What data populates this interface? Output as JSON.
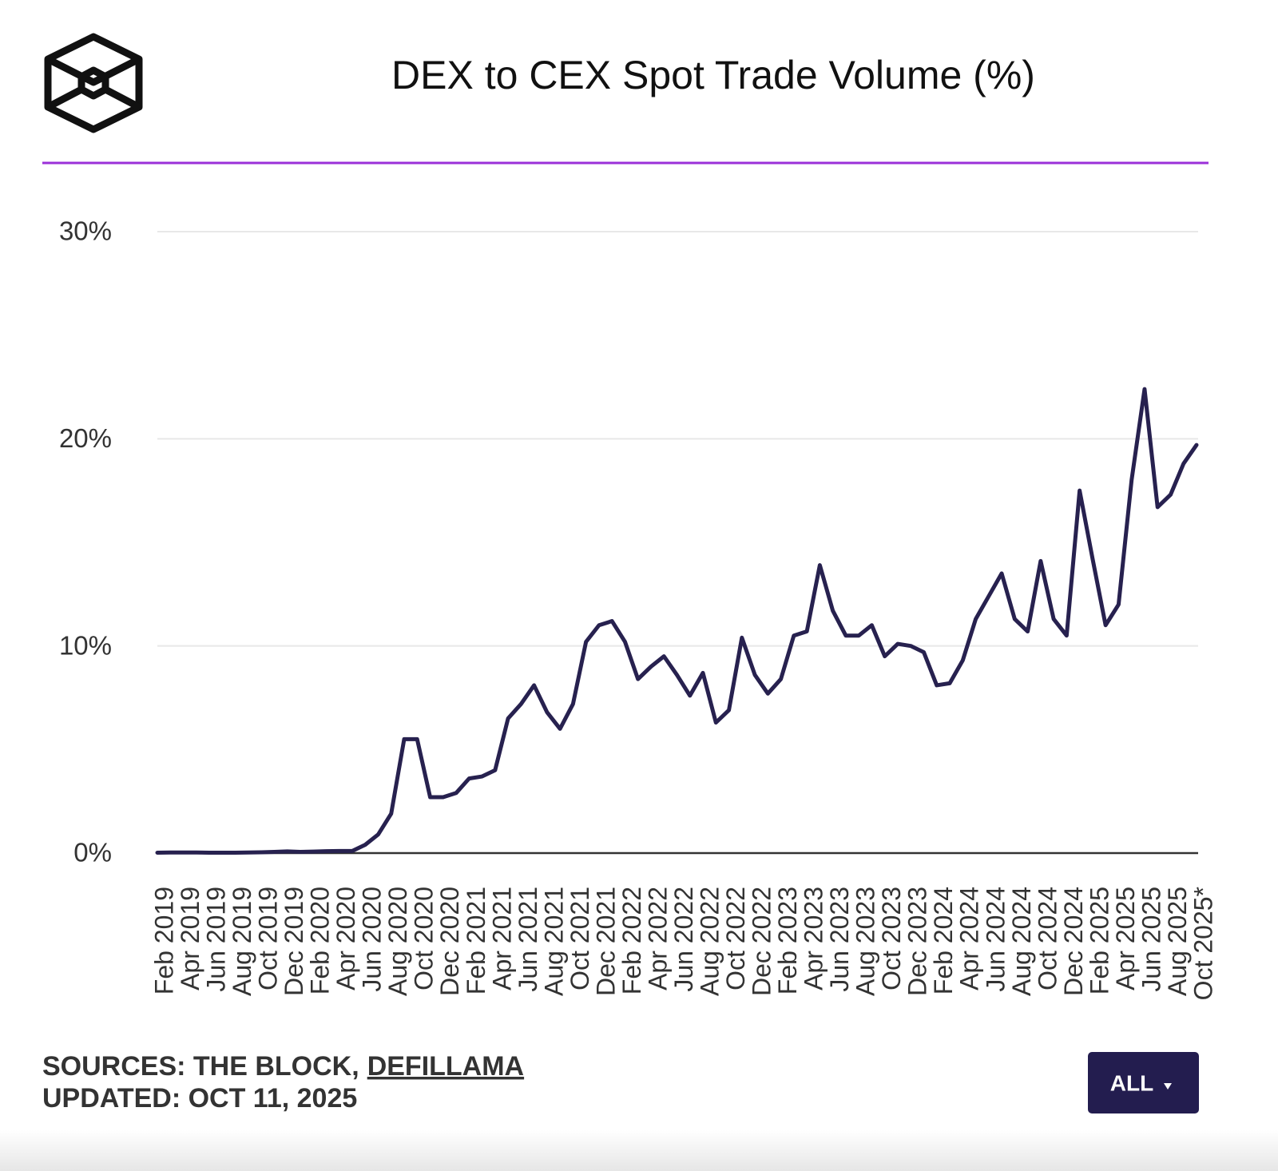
{
  "chart_data": {
    "type": "line",
    "title": "DEX to CEX Spot Trade Volume (%)",
    "categories": [
      "Feb 2019",
      null,
      "Apr 2019",
      null,
      "Jun 2019",
      null,
      "Aug 2019",
      null,
      "Oct 2019",
      null,
      "Dec 2019",
      null,
      "Feb 2020",
      null,
      "Apr 2020",
      null,
      "Jun 2020",
      null,
      "Aug 2020",
      null,
      "Oct 2020",
      null,
      "Dec 2020",
      null,
      "Feb 2021",
      null,
      "Apr 2021",
      null,
      "Jun 2021",
      null,
      "Aug 2021",
      null,
      "Oct 2021",
      null,
      "Dec 2021",
      null,
      "Feb 2022",
      null,
      "Apr 2022",
      null,
      "Jun 2022",
      null,
      "Aug 2022",
      null,
      "Oct 2022",
      null,
      "Dec 2022",
      null,
      "Feb 2023",
      null,
      "Apr 2023",
      null,
      "Jun 2023",
      null,
      "Aug 2023",
      null,
      "Oct 2023",
      null,
      "Dec 2023",
      null,
      "Feb 2024",
      null,
      "Apr 2024",
      null,
      "Jun 2024",
      null,
      "Aug 2024",
      null,
      "Oct 2024",
      null,
      "Dec 2024",
      null,
      "Feb 2025",
      null,
      "Apr 2025",
      null,
      "Jun 2025",
      null,
      "Aug 2025",
      null,
      "Oct 2025*"
    ],
    "values": [
      0.02,
      0.03,
      0.03,
      0.03,
      0.02,
      0.02,
      0.02,
      0.03,
      0.04,
      0.06,
      0.08,
      0.06,
      0.07,
      0.09,
      0.1,
      0.1,
      0.4,
      0.9,
      1.9,
      5.5,
      5.5,
      2.7,
      2.7,
      2.9,
      3.6,
      3.7,
      4.0,
      6.5,
      7.2,
      8.1,
      6.8,
      6.0,
      7.2,
      10.2,
      11.0,
      11.2,
      10.2,
      8.4,
      9.0,
      9.5,
      8.6,
      7.6,
      8.7,
      6.3,
      6.9,
      10.4,
      8.6,
      7.7,
      8.4,
      10.5,
      10.7,
      13.9,
      11.7,
      10.5,
      10.5,
      11.0,
      9.5,
      10.1,
      10.0,
      9.7,
      8.1,
      8.2,
      9.3,
      11.3,
      12.4,
      13.5,
      11.3,
      10.7,
      14.1,
      11.3,
      10.5,
      17.5,
      14.2,
      11.0,
      12.0,
      18.0,
      22.4,
      16.7,
      17.3,
      18.8,
      19.7
    ],
    "color": "#27214f",
    "ylim": [
      0,
      30
    ],
    "yticks": [
      {
        "value": 0,
        "label": "0%"
      },
      {
        "value": 10,
        "label": "10%"
      },
      {
        "value": 20,
        "label": "20%"
      },
      {
        "value": 30,
        "label": "30%"
      }
    ],
    "grid": true
  },
  "footer": {
    "sources": "SOURCES: THE BLOCK,",
    "source_link": "DEFILLAMA",
    "updated": "UPDATED: OCT 11, 2025",
    "button": "ALL"
  }
}
